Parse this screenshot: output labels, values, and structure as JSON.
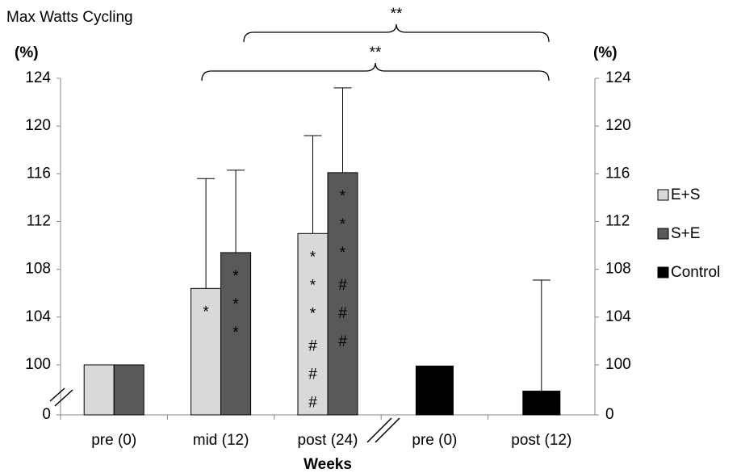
{
  "chart_data": {
    "type": "bar",
    "title": "Max Watts Cycling",
    "ylabel": "(%)",
    "y2label": "(%)",
    "xlabel": "Weeks",
    "categories": [
      "pre (0)",
      "mid (12)",
      "post (24)",
      "pre (0)",
      "post (12)"
    ],
    "series": [
      {
        "name": "E+S",
        "color": "#d9d9d9",
        "values": [
          100,
          106.4,
          111.0,
          null,
          null
        ],
        "errors": [
          0,
          9.2,
          8.2,
          null,
          null
        ],
        "bar_labels": [
          [],
          [
            "*"
          ],
          [
            "*",
            "*",
            "*",
            "#",
            "#",
            "#"
          ],
          null,
          null
        ]
      },
      {
        "name": "S+E",
        "color": "#595959",
        "values": [
          100,
          109.4,
          116.1,
          null,
          null
        ],
        "errors": [
          0,
          6.9,
          7.1,
          null,
          null
        ],
        "bar_labels": [
          [],
          [
            "*",
            "*",
            "*"
          ],
          [
            "*",
            "*",
            "*",
            "#",
            "#",
            "#"
          ],
          null,
          null
        ]
      },
      {
        "name": "Control",
        "color": "#000000",
        "values": [
          null,
          null,
          null,
          99.9,
          97.8
        ],
        "errors": [
          null,
          null,
          null,
          0,
          9.3
        ],
        "bar_labels": [
          null,
          null,
          null,
          [],
          []
        ]
      }
    ],
    "ylim": [
      0,
      124
    ],
    "yticks": [
      0,
      100,
      104,
      108,
      112,
      116,
      120,
      124
    ],
    "axis_break": true,
    "annotations": [
      "**",
      "**"
    ]
  }
}
